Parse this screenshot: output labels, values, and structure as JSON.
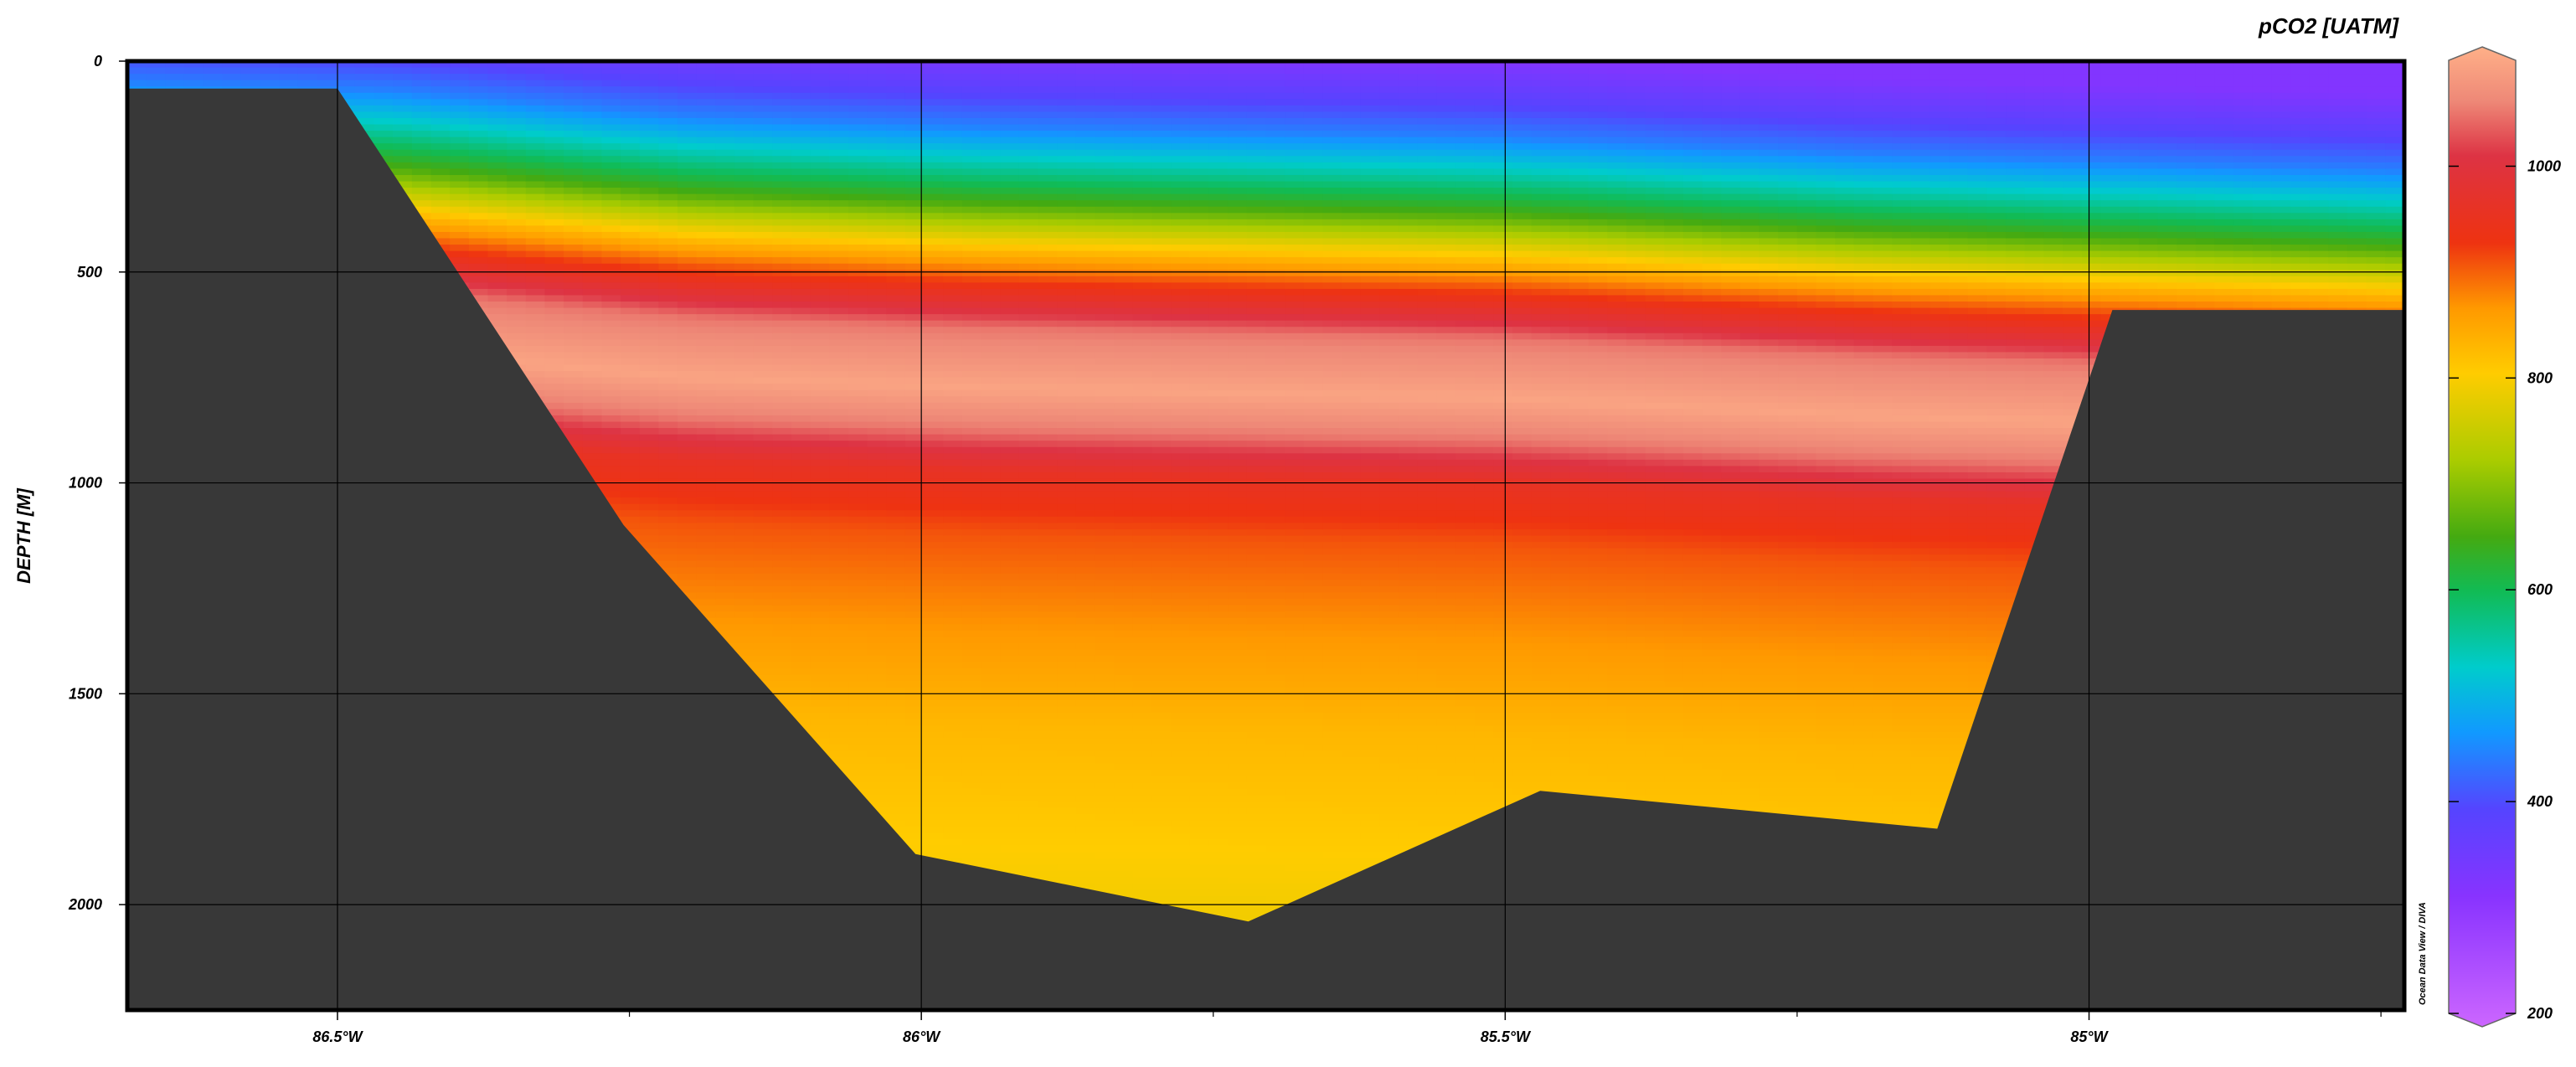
{
  "chart_data": {
    "type": "heatmap",
    "variable_label": "pCO2 [UATM]",
    "xlabel": "",
    "ylabel": "DEPTH [M]",
    "credit": "Ocean Data View / DIVA",
    "x_ticks": [
      {
        "value": -86.5,
        "label": "86.5°W"
      },
      {
        "value": -86.0,
        "label": "86°W"
      },
      {
        "value": -85.5,
        "label": "85.5°W"
      },
      {
        "value": -85.0,
        "label": "85°W"
      }
    ],
    "y_ticks": [
      0,
      500,
      1000,
      1500,
      2000
    ],
    "xlim": [
      -86.68,
      -84.73
    ],
    "ylim": [
      0,
      2250
    ],
    "y_inverted": true,
    "grid": true,
    "colorbar": {
      "position": "right",
      "range": [
        200,
        1100
      ],
      "ticks": [
        200,
        400,
        600,
        800,
        1000
      ],
      "stops": [
        {
          "value": 200,
          "color": "#cc66ff"
        },
        {
          "value": 320,
          "color": "#8833ff"
        },
        {
          "value": 400,
          "color": "#5544ff"
        },
        {
          "value": 470,
          "color": "#1199ff"
        },
        {
          "value": 530,
          "color": "#00cccc"
        },
        {
          "value": 600,
          "color": "#11bb55"
        },
        {
          "value": 650,
          "color": "#44aa11"
        },
        {
          "value": 720,
          "color": "#aacc00"
        },
        {
          "value": 800,
          "color": "#ffcc00"
        },
        {
          "value": 860,
          "color": "#ff9900"
        },
        {
          "value": 920,
          "color": "#ee3311"
        },
        {
          "value": 1000,
          "color": "#dd3344"
        },
        {
          "value": 1050,
          "color": "#ee8877"
        },
        {
          "value": 1100,
          "color": "#ffb088"
        }
      ]
    },
    "depth_profile": [
      {
        "depth": 0,
        "pco2": 330
      },
      {
        "depth": 80,
        "pco2": 380
      },
      {
        "depth": 180,
        "pco2": 450
      },
      {
        "depth": 280,
        "pco2": 560
      },
      {
        "depth": 360,
        "pco2": 650
      },
      {
        "depth": 420,
        "pco2": 740
      },
      {
        "depth": 480,
        "pco2": 830
      },
      {
        "depth": 560,
        "pco2": 930
      },
      {
        "depth": 660,
        "pco2": 1040
      },
      {
        "depth": 800,
        "pco2": 1085
      },
      {
        "depth": 900,
        "pco2": 1040
      },
      {
        "depth": 1000,
        "pco2": 950
      },
      {
        "depth": 1150,
        "pco2": 900
      },
      {
        "depth": 1350,
        "pco2": 865
      },
      {
        "depth": 1600,
        "pco2": 825
      },
      {
        "depth": 2000,
        "pco2": 790
      },
      {
        "depth": 2250,
        "pco2": 780
      }
    ],
    "shelf_shallowing": [
      {
        "lon": -86.68,
        "depth_offset": -130
      },
      {
        "lon": -86.45,
        "depth_offset": -110
      },
      {
        "lon": -86.2,
        "depth_offset": -50
      },
      {
        "lon": -85.95,
        "depth_offset": -25
      },
      {
        "lon": -85.5,
        "depth_offset": 0
      },
      {
        "lon": -85.2,
        "depth_offset": 40
      },
      {
        "lon": -84.73,
        "depth_offset": 80
      }
    ],
    "bathymetry": [
      {
        "lon": -86.68,
        "depth": 65
      },
      {
        "lon": -86.5,
        "depth": 65
      },
      {
        "lon": -86.255,
        "depth": 1100
      },
      {
        "lon": -86.005,
        "depth": 1880
      },
      {
        "lon": -85.72,
        "depth": 2040
      },
      {
        "lon": -85.47,
        "depth": 1730
      },
      {
        "lon": -85.13,
        "depth": 1820
      },
      {
        "lon": -84.98,
        "depth": 590
      },
      {
        "lon": -84.73,
        "depth": 590
      }
    ],
    "colors": {
      "seafloor": "#383838",
      "grid": "#000000",
      "frame": "#000000"
    }
  }
}
